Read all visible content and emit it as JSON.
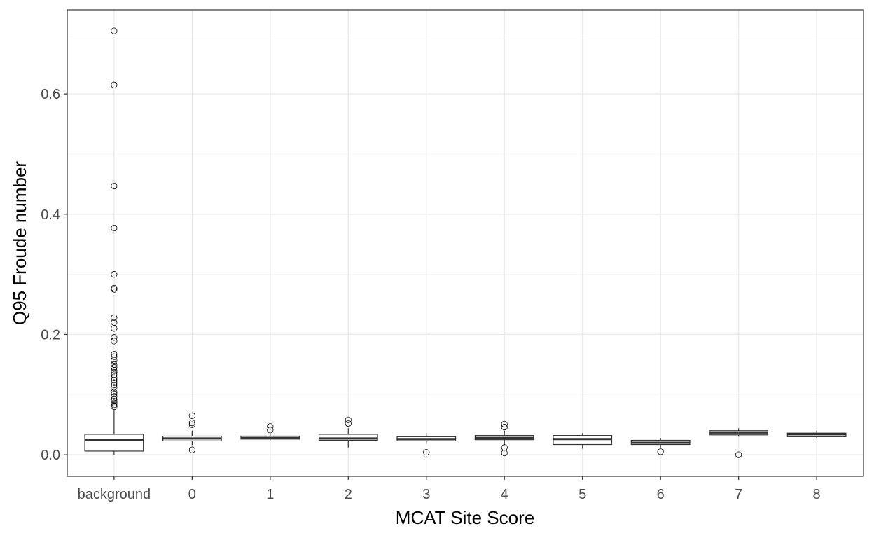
{
  "chart_data": {
    "type": "box",
    "title": "",
    "xlabel": "MCAT Site Score",
    "ylabel": "Q95 Froude number",
    "ylim": [
      -0.036,
      0.74
    ],
    "yticks": [
      0.0,
      0.2,
      0.4,
      0.6
    ],
    "ytick_labels": [
      "0.0",
      "0.2",
      "0.4",
      "0.6"
    ],
    "grid": true,
    "legend": "none",
    "colors": {
      "box_fill": "#ffffff",
      "box_stroke": "#333333",
      "grid_major": "#ebebeb",
      "grid_minor": "#f5f5f5",
      "panel_border": "#333333"
    },
    "categories": [
      "background",
      "0",
      "1",
      "2",
      "3",
      "4",
      "5",
      "6",
      "7",
      "8"
    ],
    "boxes": [
      {
        "category": "background",
        "q1": 0.006,
        "median": 0.024,
        "q3": 0.034,
        "whisker_low": 0.0,
        "whisker_high": 0.075,
        "outliers": [
          0.705,
          0.615,
          0.447,
          0.377,
          0.3,
          0.277,
          0.275,
          0.228,
          0.22,
          0.21,
          0.195,
          0.189,
          0.167,
          0.163,
          0.157,
          0.15,
          0.145,
          0.14,
          0.137,
          0.133,
          0.128,
          0.124,
          0.12,
          0.116,
          0.112,
          0.104,
          0.101,
          0.097,
          0.092,
          0.089,
          0.086,
          0.083,
          0.08
        ]
      },
      {
        "category": "0",
        "q1": 0.023,
        "median": 0.027,
        "q3": 0.031,
        "whisker_low": 0.016,
        "whisker_high": 0.04,
        "outliers": [
          0.065,
          0.053,
          0.05,
          0.008
        ]
      },
      {
        "category": "1",
        "q1": 0.026,
        "median": 0.028,
        "q3": 0.031,
        "whisker_low": 0.024,
        "whisker_high": 0.035,
        "outliers": [
          0.047,
          0.041
        ]
      },
      {
        "category": "2",
        "q1": 0.024,
        "median": 0.027,
        "q3": 0.034,
        "whisker_low": 0.012,
        "whisker_high": 0.044,
        "outliers": [
          0.058,
          0.052
        ]
      },
      {
        "category": "3",
        "q1": 0.023,
        "median": 0.026,
        "q3": 0.03,
        "whisker_low": 0.018,
        "whisker_high": 0.036,
        "outliers": [
          0.004
        ]
      },
      {
        "category": "4",
        "q1": 0.025,
        "median": 0.028,
        "q3": 0.032,
        "whisker_low": 0.016,
        "whisker_high": 0.04,
        "outliers": [
          0.051,
          0.046,
          0.012,
          0.003
        ]
      },
      {
        "category": "5",
        "q1": 0.017,
        "median": 0.026,
        "q3": 0.032,
        "whisker_low": 0.01,
        "whisker_high": 0.036,
        "outliers": []
      },
      {
        "category": "6",
        "q1": 0.017,
        "median": 0.02,
        "q3": 0.024,
        "whisker_low": 0.012,
        "whisker_high": 0.028,
        "outliers": [
          0.005
        ]
      },
      {
        "category": "7",
        "q1": 0.033,
        "median": 0.037,
        "q3": 0.04,
        "whisker_low": 0.03,
        "whisker_high": 0.044,
        "outliers": [
          0.0
        ]
      },
      {
        "category": "8",
        "q1": 0.03,
        "median": 0.034,
        "q3": 0.036,
        "whisker_low": 0.028,
        "whisker_high": 0.04,
        "outliers": []
      }
    ]
  }
}
